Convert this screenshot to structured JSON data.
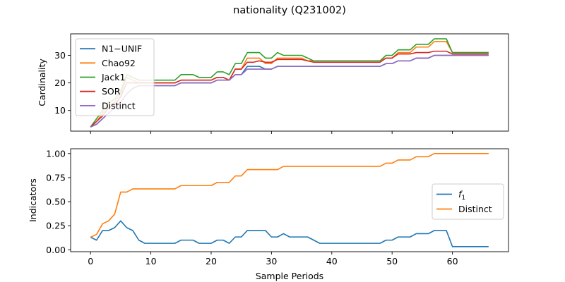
{
  "title": "nationality (Q231002)",
  "chart_data": [
    {
      "type": "line",
      "ylabel": "Cardinality",
      "xlim": [
        -3.3,
        69.3
      ],
      "ylim": [
        2.5,
        37.8
      ],
      "yticks": [
        10,
        20,
        30
      ],
      "show_xticklabels": false,
      "legend_position": "upper-left",
      "series": [
        {
          "name": "N1−UNIF",
          "color": "#1f77b4",
          "values": [
            4,
            5,
            7,
            9,
            11,
            13,
            16,
            18,
            19,
            19,
            19,
            19,
            19,
            19,
            19,
            20,
            20,
            20,
            20,
            20,
            20,
            21,
            21,
            21,
            23,
            23,
            26,
            26,
            26,
            25,
            25,
            26,
            26,
            26,
            26,
            26,
            26,
            26,
            26,
            26,
            26,
            26,
            26,
            26,
            26,
            26,
            26,
            26,
            26,
            27,
            27,
            28,
            28,
            28,
            29,
            29,
            29,
            30,
            30,
            30,
            30,
            30,
            30,
            30,
            30,
            30,
            30
          ]
        },
        {
          "name": "Chao92",
          "color": "#ff7f0e",
          "values": [
            4,
            6,
            9,
            12,
            13,
            16,
            22,
            21,
            20,
            20,
            20,
            20,
            20,
            20,
            20,
            21,
            21,
            21,
            21,
            21,
            21,
            22,
            22,
            21,
            25,
            25,
            29,
            29,
            29,
            27,
            27,
            29,
            29,
            29,
            29,
            29,
            28,
            28,
            28,
            28,
            28,
            28,
            28,
            28,
            28,
            28,
            28,
            28,
            28,
            29,
            29,
            31,
            31,
            31,
            33,
            33,
            33,
            35,
            35,
            35,
            31,
            31,
            31,
            31,
            31,
            31,
            31
          ]
        },
        {
          "name": "Jack1",
          "color": "#2ca02c",
          "values": [
            4,
            7,
            10,
            13,
            14,
            17,
            23,
            22,
            21,
            21,
            21,
            21,
            21,
            21,
            21,
            23,
            23,
            23,
            22,
            22,
            22,
            24,
            24,
            23,
            27,
            27,
            31,
            31,
            31,
            29,
            29,
            31,
            30,
            30,
            30,
            30,
            29,
            28,
            28,
            28,
            28,
            28,
            28,
            28,
            28,
            28,
            28,
            28,
            28,
            30,
            30,
            32,
            32,
            32,
            34,
            34,
            34,
            36,
            36,
            36,
            31,
            31,
            31,
            31,
            31,
            31,
            31
          ]
        },
        {
          "name": "SOR",
          "color": "#d62728",
          "values": [
            4,
            6,
            8,
            11,
            12,
            15,
            20,
            20,
            20,
            20,
            20,
            20,
            20,
            20,
            20,
            21,
            21,
            21,
            21,
            21,
            21,
            22,
            22,
            21,
            25,
            25,
            27.5,
            27.5,
            28,
            27.5,
            27.5,
            28.5,
            28.5,
            28.5,
            28.5,
            28.5,
            28,
            27.5,
            27.5,
            27.5,
            27.5,
            27.5,
            27.5,
            27.5,
            27.5,
            27.5,
            27.5,
            27.5,
            27.5,
            29,
            29,
            30.5,
            30.5,
            30.5,
            31,
            31,
            31,
            31.5,
            31.5,
            31.5,
            30.5,
            30.5,
            30.5,
            30.5,
            30.5,
            30.5,
            30.5
          ]
        },
        {
          "name": "Distinct",
          "color": "#9467bd",
          "values": [
            4,
            5,
            7,
            9,
            11,
            13,
            16,
            18,
            19,
            19,
            19,
            19,
            19,
            19,
            19,
            20,
            20,
            20,
            20,
            20,
            20,
            21,
            21,
            21,
            23,
            23,
            25,
            25,
            25,
            25,
            25,
            26,
            26,
            26,
            26,
            26,
            26,
            26,
            26,
            26,
            26,
            26,
            26,
            26,
            26,
            26,
            26,
            26,
            26,
            27,
            27,
            28,
            28,
            28,
            29,
            29,
            29,
            30,
            30,
            30,
            30,
            30,
            30,
            30,
            30,
            30,
            30
          ]
        }
      ]
    },
    {
      "type": "line",
      "ylabel": "Indicators",
      "xlabel": "Sample Periods",
      "xlim": [
        -3.3,
        69.3
      ],
      "ylim": [
        -0.02,
        1.05
      ],
      "xticks": [
        0,
        10,
        20,
        30,
        40,
        50,
        60
      ],
      "yticks": [
        0.0,
        0.25,
        0.5,
        0.75,
        1.0
      ],
      "ytick_labels": [
        "0.00",
        "0.25",
        "0.50",
        "0.75",
        "1.00"
      ],
      "legend_position": "center-right",
      "series": [
        {
          "name": "f1",
          "color": "#1f77b4",
          "values": [
            0.13,
            0.1,
            0.2,
            0.2,
            0.23,
            0.3,
            0.23,
            0.2,
            0.1,
            0.067,
            0.067,
            0.067,
            0.067,
            0.067,
            0.067,
            0.1,
            0.1,
            0.1,
            0.067,
            0.067,
            0.067,
            0.1,
            0.1,
            0.067,
            0.133,
            0.133,
            0.2,
            0.2,
            0.2,
            0.2,
            0.133,
            0.133,
            0.167,
            0.133,
            0.133,
            0.133,
            0.133,
            0.1,
            0.067,
            0.067,
            0.067,
            0.067,
            0.067,
            0.067,
            0.067,
            0.067,
            0.067,
            0.067,
            0.067,
            0.1,
            0.1,
            0.133,
            0.133,
            0.133,
            0.167,
            0.167,
            0.167,
            0.2,
            0.2,
            0.2,
            0.033,
            0.033,
            0.033,
            0.033,
            0.033,
            0.033,
            0.033
          ]
        },
        {
          "name": "Distinct",
          "color": "#ff7f0e",
          "values": [
            0.13,
            0.16,
            0.27,
            0.3,
            0.37,
            0.6,
            0.6,
            0.633,
            0.633,
            0.633,
            0.633,
            0.633,
            0.633,
            0.633,
            0.633,
            0.667,
            0.667,
            0.667,
            0.667,
            0.667,
            0.667,
            0.7,
            0.7,
            0.7,
            0.767,
            0.767,
            0.833,
            0.833,
            0.833,
            0.833,
            0.833,
            0.833,
            0.867,
            0.867,
            0.867,
            0.867,
            0.867,
            0.867,
            0.867,
            0.867,
            0.867,
            0.867,
            0.867,
            0.867,
            0.867,
            0.867,
            0.867,
            0.867,
            0.867,
            0.9,
            0.9,
            0.933,
            0.933,
            0.933,
            0.967,
            0.967,
            0.967,
            1,
            1,
            1,
            1,
            1,
            1,
            1,
            1,
            1,
            1
          ]
        }
      ]
    }
  ]
}
